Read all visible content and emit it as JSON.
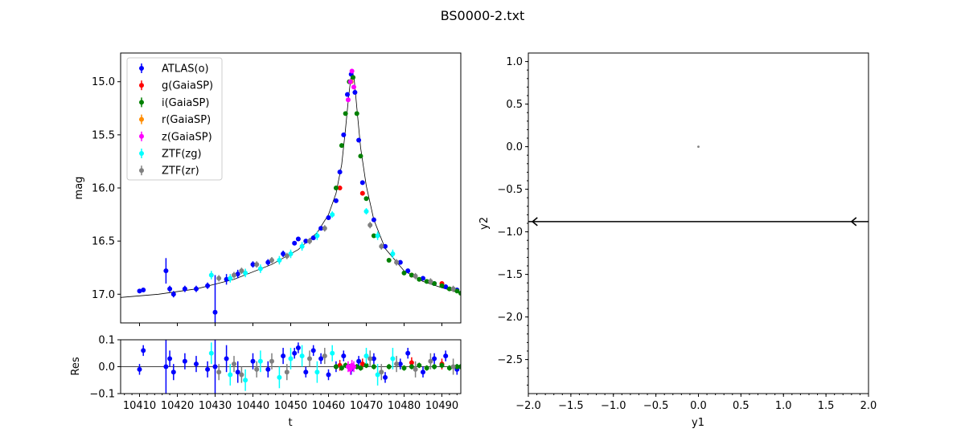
{
  "title": "BS0000-2.txt",
  "chart_data": [
    {
      "type": "scatter",
      "panel": "light-curve",
      "xlabel": "",
      "ylabel": "mag",
      "xlim": [
        10405,
        10495
      ],
      "ylim": [
        17.27,
        14.73
      ],
      "y_inverted": true,
      "yticks": [
        "15.0",
        "15.5",
        "16.0",
        "16.5",
        "17.0"
      ],
      "legend_position": "upper-left",
      "series": [
        {
          "name": "ATLAS(o)",
          "color": "#0000ff",
          "x": [
            10410,
            10411,
            10417,
            10418,
            10419,
            10422,
            10425,
            10428,
            10430,
            10433,
            10436,
            10440,
            10444,
            10448,
            10451,
            10452,
            10454,
            10456,
            10458,
            10460,
            10462,
            10463,
            10464,
            10465,
            10466,
            10467,
            10468,
            10469,
            10472,
            10475,
            10479,
            10481,
            10485,
            10488,
            10491,
            10494
          ],
          "y": [
            16.97,
            16.96,
            16.78,
            16.95,
            17.0,
            16.95,
            16.95,
            16.92,
            17.17,
            16.86,
            16.81,
            16.72,
            16.7,
            16.62,
            16.52,
            16.48,
            16.5,
            16.47,
            16.38,
            16.28,
            16.12,
            15.85,
            15.5,
            15.12,
            14.93,
            15.1,
            15.55,
            15.95,
            16.3,
            16.55,
            16.7,
            16.78,
            16.85,
            16.9,
            16.93,
            16.96
          ],
          "err": [
            0.02,
            0.02,
            0.12,
            0.03,
            0.03,
            0.03,
            0.03,
            0.03,
            0.35,
            0.05,
            0.04,
            0.03,
            0.03,
            0.03,
            0.02,
            0.02,
            0.02,
            0.02,
            0.02,
            0.02,
            0.02,
            0.02,
            0.02,
            0.02,
            0.02,
            0.02,
            0.02,
            0.02,
            0.02,
            0.02,
            0.02,
            0.02,
            0.02,
            0.02,
            0.02,
            0.02
          ]
        },
        {
          "name": "g(GaiaSP)",
          "color": "#ff0000",
          "x": [
            10463,
            10469,
            10482,
            10490
          ],
          "y": [
            16.0,
            16.05,
            16.82,
            16.9
          ],
          "err": [
            0.02,
            0.02,
            0.02,
            0.02
          ]
        },
        {
          "name": "i(GaiaSP)",
          "color": "#008000",
          "x": [
            10462,
            10463.5,
            10464.5,
            10465.5,
            10466.5,
            10467.5,
            10468.5,
            10470,
            10472,
            10476,
            10480,
            10482,
            10484,
            10486,
            10488,
            10490,
            10492,
            10494,
            10495
          ],
          "y": [
            16.0,
            15.6,
            15.3,
            15.0,
            14.96,
            15.3,
            15.7,
            16.1,
            16.45,
            16.68,
            16.8,
            16.82,
            16.86,
            16.88,
            16.9,
            16.92,
            16.95,
            16.97,
            16.99
          ],
          "err": [
            0.01,
            0.01,
            0.01,
            0.01,
            0.01,
            0.01,
            0.01,
            0.01,
            0.01,
            0.01,
            0.01,
            0.01,
            0.01,
            0.01,
            0.01,
            0.01,
            0.01,
            0.01,
            0.01
          ]
        },
        {
          "name": "r(GaiaSP)",
          "color": "#ff8c00",
          "x": [
            10466
          ],
          "y": [
            15.0
          ],
          "err": [
            0.01
          ]
        },
        {
          "name": "z(GaiaSP)",
          "color": "#ff00ff",
          "x": [
            10465.2,
            10465.8,
            10466.2,
            10466.7
          ],
          "y": [
            15.17,
            15.0,
            14.9,
            15.05
          ],
          "err": [
            0.02,
            0.02,
            0.02,
            0.02
          ]
        },
        {
          "name": "ZTF(zg)",
          "color": "#00ffff",
          "x": [
            10429,
            10434,
            10438,
            10442,
            10447,
            10450,
            10453,
            10457,
            10461,
            10470,
            10473,
            10477
          ],
          "y": [
            16.82,
            16.85,
            16.8,
            16.76,
            16.68,
            16.62,
            16.55,
            16.45,
            16.25,
            16.22,
            16.45,
            16.62
          ],
          "err": [
            0.04,
            0.04,
            0.04,
            0.04,
            0.04,
            0.04,
            0.04,
            0.04,
            0.03,
            0.03,
            0.04,
            0.04
          ]
        },
        {
          "name": "ZTF(zr)",
          "color": "#808080",
          "x": [
            10431,
            10435,
            10437,
            10441,
            10445,
            10449,
            10455,
            10459,
            10471,
            10474,
            10478,
            10483,
            10487,
            10493
          ],
          "y": [
            16.85,
            16.82,
            16.78,
            16.72,
            16.68,
            16.64,
            16.5,
            16.38,
            16.35,
            16.55,
            16.7,
            16.83,
            16.88,
            16.95
          ],
          "err": [
            0.03,
            0.03,
            0.03,
            0.03,
            0.03,
            0.03,
            0.03,
            0.03,
            0.03,
            0.03,
            0.03,
            0.03,
            0.03,
            0.03
          ]
        }
      ],
      "model_curve": {
        "color": "#000000",
        "x": [
          10405,
          10415,
          10425,
          10435,
          10445,
          10452,
          10457,
          10460,
          10462,
          10463.5,
          10464.5,
          10465.3,
          10465.9,
          10466.3,
          10466.8,
          10467.5,
          10468.5,
          10470,
          10472,
          10475,
          10480,
          10485,
          10490,
          10495
        ],
        "y": [
          17.03,
          17.0,
          16.95,
          16.86,
          16.72,
          16.58,
          16.42,
          16.25,
          16.05,
          15.78,
          15.45,
          15.15,
          14.97,
          14.9,
          14.98,
          15.25,
          15.62,
          15.98,
          16.3,
          16.57,
          16.78,
          16.88,
          16.94,
          16.99
        ]
      }
    },
    {
      "type": "scatter",
      "panel": "residuals",
      "xlabel": "t",
      "ylabel": "Res",
      "xlim": [
        10405,
        10495
      ],
      "ylim": [
        -0.1,
        0.1
      ],
      "xticks": [
        "10410",
        "10420",
        "10430",
        "10440",
        "10450",
        "10460",
        "10470",
        "10480",
        "10490"
      ],
      "yticks": [
        "0.1",
        "0.0",
        "−0.1"
      ],
      "zero_line": true,
      "series": [
        {
          "name": "ATLAS(o)",
          "color": "#0000ff",
          "x": [
            10410,
            10411,
            10417,
            10418,
            10419,
            10422,
            10425,
            10428,
            10430,
            10433,
            10436,
            10440,
            10444,
            10448,
            10451,
            10452,
            10454,
            10456,
            10458,
            10460,
            10462,
            10464,
            10466,
            10468,
            10472,
            10475,
            10479,
            10481,
            10485,
            10488,
            10491,
            10494
          ],
          "y": [
            -0.01,
            0.06,
            0.0,
            0.03,
            -0.02,
            0.02,
            0.01,
            -0.01,
            0.0,
            0.03,
            -0.02,
            0.02,
            -0.01,
            0.04,
            0.05,
            0.07,
            -0.02,
            0.06,
            0.03,
            -0.03,
            0.0,
            0.04,
            -0.01,
            0.02,
            0.03,
            -0.04,
            0.01,
            0.05,
            -0.02,
            0.03,
            0.04,
            -0.01
          ],
          "err": [
            0.02,
            0.02,
            0.12,
            0.03,
            0.03,
            0.03,
            0.03,
            0.03,
            0.35,
            0.05,
            0.04,
            0.03,
            0.03,
            0.03,
            0.02,
            0.02,
            0.02,
            0.02,
            0.02,
            0.02,
            0.02,
            0.02,
            0.02,
            0.02,
            0.02,
            0.02,
            0.02,
            0.02,
            0.02,
            0.02,
            0.02,
            0.02
          ]
        },
        {
          "name": "g(GaiaSP)",
          "color": "#ff0000",
          "x": [
            10463,
            10469,
            10482,
            10490
          ],
          "y": [
            0.005,
            0.01,
            0.015,
            0.01
          ],
          "err": [
            0.02,
            0.02,
            0.02,
            0.02
          ]
        },
        {
          "name": "i(GaiaSP)",
          "color": "#008000",
          "x": [
            10462,
            10463.5,
            10464.5,
            10465.5,
            10467.5,
            10468.5,
            10470,
            10472,
            10476,
            10480,
            10482,
            10484,
            10486,
            10488,
            10490,
            10492,
            10494,
            10495
          ],
          "y": [
            0.0,
            -0.005,
            0.005,
            0.0,
            0.0,
            -0.005,
            0.005,
            0.0,
            0.0,
            -0.005,
            0.0,
            0.005,
            -0.005,
            0.0,
            0.005,
            -0.005,
            0.0,
            0.0
          ],
          "err": [
            0.01,
            0.01,
            0.01,
            0.01,
            0.01,
            0.01,
            0.01,
            0.01,
            0.01,
            0.01,
            0.01,
            0.01,
            0.01,
            0.01,
            0.01,
            0.01,
            0.01,
            0.01
          ]
        },
        {
          "name": "r(GaiaSP)",
          "color": "#ff8c00",
          "x": [
            10466
          ],
          "y": [
            0.0
          ],
          "err": [
            0.01
          ]
        },
        {
          "name": "z(GaiaSP)",
          "color": "#ff00ff",
          "x": [
            10465.2,
            10465.8,
            10466.2,
            10466.7
          ],
          "y": [
            0.0,
            -0.01,
            0.005,
            0.0
          ],
          "err": [
            0.02,
            0.02,
            0.02,
            0.02
          ]
        },
        {
          "name": "ZTF(zg)",
          "color": "#00ffff",
          "x": [
            10429,
            10434,
            10438,
            10442,
            10447,
            10450,
            10453,
            10457,
            10461,
            10470,
            10473,
            10477
          ],
          "y": [
            0.05,
            -0.03,
            -0.05,
            0.02,
            -0.04,
            0.03,
            0.04,
            -0.02,
            0.05,
            0.04,
            -0.03,
            0.03
          ],
          "err": [
            0.04,
            0.04,
            0.04,
            0.04,
            0.04,
            0.04,
            0.04,
            0.04,
            0.03,
            0.03,
            0.04,
            0.04
          ]
        },
        {
          "name": "ZTF(zr)",
          "color": "#808080",
          "x": [
            10431,
            10435,
            10437,
            10441,
            10445,
            10449,
            10455,
            10459,
            10471,
            10474,
            10478,
            10483,
            10487,
            10493
          ],
          "y": [
            -0.02,
            0.01,
            -0.03,
            -0.01,
            0.02,
            -0.02,
            0.03,
            0.04,
            0.03,
            -0.02,
            0.01,
            -0.01,
            0.02,
            0.0
          ],
          "err": [
            0.03,
            0.03,
            0.03,
            0.03,
            0.03,
            0.03,
            0.03,
            0.03,
            0.03,
            0.03,
            0.03,
            0.03,
            0.03,
            0.03
          ]
        }
      ]
    },
    {
      "type": "scatter",
      "panel": "source-plane",
      "xlabel": "y1",
      "ylabel": "y2",
      "xlim": [
        -2.0,
        2.0
      ],
      "ylim": [
        -2.9,
        1.1
      ],
      "xticks": [
        "−2.0",
        "−1.5",
        "−1.0",
        "−0.5",
        "0.0",
        "0.5",
        "1.0",
        "1.5",
        "2.0"
      ],
      "yticks": [
        "1.0",
        "0.5",
        "0.0",
        "−0.5",
        "−1.0",
        "−1.5",
        "−2.0",
        "−2.5"
      ],
      "points": [
        {
          "x": 0.0,
          "y": 0.0,
          "color": "#808080"
        }
      ],
      "trajectory": {
        "y": -0.88,
        "x_from": 2.0,
        "x_to": -2.0,
        "arrow_x": [
          1.8,
          -1.95
        ],
        "color": "#000000"
      }
    }
  ]
}
